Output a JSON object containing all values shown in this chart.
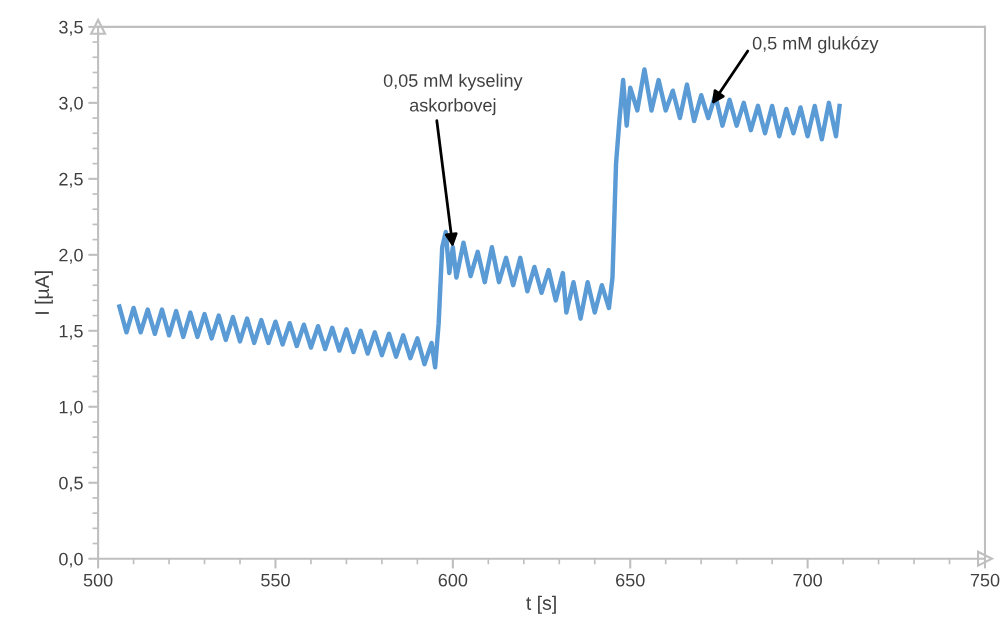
{
  "chart_data": {
    "type": "line",
    "xlabel": "t [s]",
    "ylabel": "I [µA]",
    "xlim": [
      500,
      750
    ],
    "xticks": [
      500,
      550,
      600,
      650,
      700,
      750
    ],
    "ylim": [
      0,
      3.5
    ],
    "yticks": [
      {
        "value": 0,
        "label": "0,0"
      },
      {
        "value": 0.5,
        "label": "0,5"
      },
      {
        "value": 1,
        "label": "1,0"
      },
      {
        "value": 1.5,
        "label": "1,5"
      },
      {
        "value": 2,
        "label": "2,0"
      },
      {
        "value": 2.5,
        "label": "2,5"
      },
      {
        "value": 3,
        "label": "3,0"
      },
      {
        "value": 3.5,
        "label": "3,5"
      }
    ],
    "grid": false,
    "legend": false,
    "marker": "none",
    "line_style": "solid",
    "annotations": [
      {
        "text": "0,05 mM kyseliny\naskorbovej",
        "x": 600,
        "y": 2.05
      },
      {
        "text": "0,5 mM glukózy",
        "x": 673,
        "y": 2.99
      }
    ],
    "series": [
      {
        "color": "#5b9bd5",
        "x": [
          506,
          508,
          510,
          512,
          514,
          516,
          518,
          520,
          522,
          524,
          526,
          528,
          530,
          532,
          534,
          536,
          538,
          540,
          542,
          544,
          546,
          548,
          550,
          552,
          554,
          556,
          558,
          560,
          562,
          564,
          566,
          568,
          570,
          572,
          574,
          576,
          578,
          580,
          582,
          584,
          586,
          588,
          590,
          592,
          594,
          595,
          596,
          597,
          598,
          599,
          600,
          601,
          603,
          605,
          607,
          609,
          611,
          613,
          615,
          617,
          619,
          621,
          623,
          625,
          627,
          629,
          631,
          632,
          634,
          636,
          638,
          640,
          642,
          644,
          645,
          646,
          647,
          648,
          649,
          650,
          652,
          654,
          656,
          658,
          660,
          662,
          664,
          666,
          668,
          670,
          672,
          674,
          676,
          678,
          680,
          682,
          684,
          686,
          688,
          690,
          692,
          694,
          696,
          698,
          700,
          702,
          704,
          706,
          708,
          709
        ],
        "values": [
          1.66,
          1.49,
          1.65,
          1.49,
          1.64,
          1.48,
          1.64,
          1.47,
          1.63,
          1.46,
          1.62,
          1.46,
          1.61,
          1.45,
          1.6,
          1.44,
          1.59,
          1.43,
          1.58,
          1.42,
          1.57,
          1.42,
          1.56,
          1.41,
          1.55,
          1.4,
          1.54,
          1.39,
          1.53,
          1.38,
          1.52,
          1.37,
          1.51,
          1.36,
          1.5,
          1.35,
          1.49,
          1.34,
          1.48,
          1.33,
          1.47,
          1.32,
          1.45,
          1.28,
          1.42,
          1.26,
          1.55,
          2.05,
          2.15,
          1.88,
          2.05,
          1.85,
          2.08,
          1.86,
          2.02,
          1.82,
          2.05,
          1.82,
          1.98,
          1.8,
          1.98,
          1.76,
          1.92,
          1.75,
          1.9,
          1.7,
          1.88,
          1.62,
          1.82,
          1.58,
          1.82,
          1.62,
          1.8,
          1.65,
          1.85,
          2.6,
          2.9,
          3.15,
          2.85,
          3.1,
          2.95,
          3.22,
          2.95,
          3.15,
          2.95,
          3.08,
          2.9,
          3.12,
          2.88,
          3.05,
          2.9,
          3.05,
          2.85,
          3.02,
          2.85,
          3.0,
          2.82,
          2.98,
          2.8,
          2.98,
          2.78,
          2.96,
          2.8,
          2.97,
          2.78,
          2.98,
          2.76,
          3.0,
          2.78,
          2.98
        ]
      }
    ]
  }
}
